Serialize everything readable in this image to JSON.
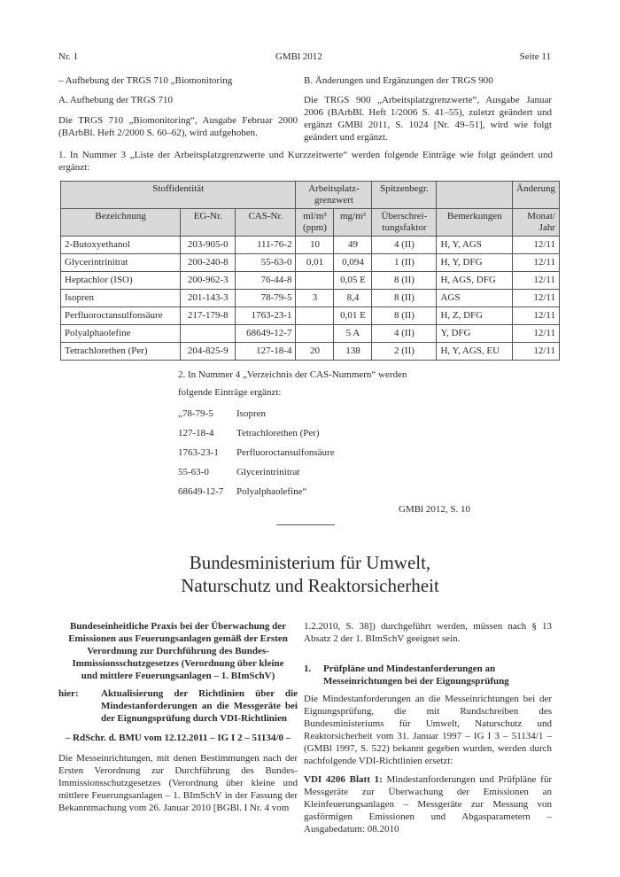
{
  "header": {
    "left": "Nr. 1",
    "center": "GMBl 2012",
    "right": "Seite 11"
  },
  "left_top": {
    "dash_item": "–  Aufhebung der TRGS 710 „Biomonitoring",
    "heading_a": "A.   Aufhebung der TRGS 710",
    "para": "Die TRGS 710 „Biomonitoring“, Ausgabe Februar 2000 (BArbBl. Heft 2/2000 S. 60–62), wird aufgehoben."
  },
  "right_top": {
    "heading_b": "B.   Änderungen und Ergänzungen der TRGS 900",
    "para": "Die TRGS 900 „Arbeitsplatzgrenzwerte“, Ausgabe Januar 2006 (BArbBl. Heft 1/2006 S. 41–55), zuletzt geändert und ergänzt GMBl 2011, S. 1024 [Nr. 49–51], wird wie folgt geändert und ergänzt."
  },
  "item1": "1. In Nummer 3 „Liste der Arbeitsplatzgrenzwerte und Kurzzeitwerte“ werden folgende Einträge wie folgt geändert und ergänzt:",
  "table": {
    "group_headers": [
      "Stoffidentität",
      "Arbeitsplatz-grenzwert",
      "Spitzenbegr.",
      "",
      "Änderung"
    ],
    "headers": [
      "Bezeichnung",
      "EG-Nr.",
      "CAS-Nr.",
      "ml/m³ (ppm)",
      "mg/m³",
      "Überschrei-tungsfaktor",
      "Bemerkungen",
      "Monat/ Jahr"
    ],
    "rows": [
      [
        "2-Butoxyethanol",
        "203-905-0",
        "111-76-2",
        "10",
        "49",
        "4 (II)",
        "H, Y, AGS",
        "12/11"
      ],
      [
        "Glycerintrinitrat",
        "200-240-8",
        "55-63-0",
        "0,01",
        "0,094",
        "1 (II)",
        "H, Y, DFG",
        "12/11"
      ],
      [
        "Heptachlor (ISO)",
        "200-962-3",
        "76-44-8",
        "",
        "0,05 E",
        "8 (II)",
        "H, AGS, DFG",
        "12/11"
      ],
      [
        "Isopren",
        "201-143-3",
        "78-79-5",
        "3",
        "8,4",
        "8 (II)",
        "AGS",
        "12/11"
      ],
      [
        "Perfluoroctansulfonsäure",
        "217-179-8",
        "1763-23-1",
        "",
        "0,01 E",
        "8 (II)",
        "H, Z, DFG",
        "12/11"
      ],
      [
        "Polyalphaolefine",
        "",
        "68649-12-7",
        "",
        "5 A",
        "4 (II)",
        "Y, DFG",
        "12/11"
      ],
      [
        "Tetrachlorethen (Per)",
        "204-825-9",
        "127-18-4",
        "20",
        "138",
        "2 (II)",
        "H, Y, AGS, EU",
        "12/11"
      ]
    ]
  },
  "item2": {
    "line1": "2. In Nummer 4 „Verzeichnis der CAS-Nummern“ werden",
    "line2": "folgende Einträge ergänzt:",
    "entries": [
      [
        "„78-79-5",
        "Isopren"
      ],
      [
        "127-18-4",
        "Tetrachlorethen (Per)"
      ],
      [
        "1763-23-1",
        "Perfluoroctansulfonsäure"
      ],
      [
        "55-63-0",
        "Glycerintrinitrat"
      ],
      [
        "68649-12-7",
        "Polyalphaolefine“"
      ]
    ],
    "source": "GMBl 2012, S. 10"
  },
  "ministry": {
    "line1": "Bundesministerium für Umwelt,",
    "line2": "Naturschutz und Reaktorsicherheit"
  },
  "left_bottom": {
    "title": "Bundeseinheitliche Praxis bei der Überwachung der Emissionen aus Feuerungsanlagen gemäß der Ersten Verordnung zur Durchführung des Bundes-Immissionsschutzgesetzes (Verordnung über kleine und mittlere Feuerungsanlagen – 1. BImSchV)",
    "hier_label": "hier:",
    "hier_text": "Aktualisierung der Richtlinien über die Mindestanforderungen an die Messgeräte bei der Eignungsprüfung durch VDI-Richtlinien",
    "ref": "– RdSchr. d. BMU vom 12.12.2011 – IG I 2 – 51134/0 –",
    "para": "Die Messeinrichtungen, mit denen Bestimmungen nach der Ersten Verordnung zur Durchführung des Bundes-Immissionsschutzgesetzes (Verordnung über kleine und mittlere Feuerungsanlagen – 1. BImSchV in der Fassung der Bekanntmachung vom 26. Januar 2010 [BGBl. I Nr. 4 vom"
  },
  "right_bottom": {
    "para1": "1.2.2010, S. 38]) durchgeführt werden, müssen nach § 13 Absatz 2 der 1. BImSchV geeignet sein.",
    "heading_num": "1.",
    "heading": "Prüfpläne und Mindestanforderungen an Messeinrichtungen bei der Eignungsprüfung",
    "para2": "Die Mindestanforderungen an die Messeinrichtungen bei der Eignungsprüfung, die mit Rundschreiben des Bundesministeriums für Umwelt, Naturschutz und Reaktorsicherheit vom 31. Januar 1997 – IG I 3 – 51134/1 – (GMBl 1997, S. 522) bekannt gegeben wurden, werden durch nachfolgende VDI-Richtlinien ersetzt:",
    "vdi_label": "VDI 4206 Blatt 1:",
    "vdi_text": " Mindestanforderungen und Prüfpläne für Messgeräte zur Überwachung der Emissionen an Kleinfeuerungsanlagen – Messgeräte zur Messung von gasförmigen Emissionen und Abgasparametern – Ausgabedatum: 08.2010"
  }
}
